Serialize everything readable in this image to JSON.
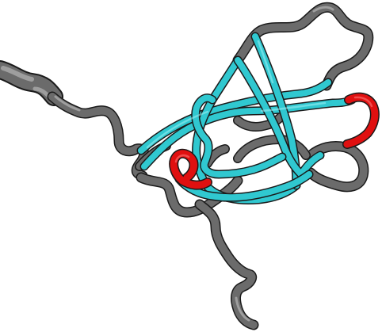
{
  "scene": {
    "background": "#ffffff",
    "colors": {
      "coil": "#6b6b6b",
      "coil_highlight": "#c8c8c8",
      "strand": "#30c8d0",
      "strand_highlight": "#9ff0f4",
      "turn": "#e01010",
      "turn_highlight": "#ff8080",
      "outline": "#1a1a1a"
    },
    "segments": [
      {
        "name": "n-terminal-tail",
        "kind": "coil"
      },
      {
        "name": "linker-coil",
        "kind": "coil"
      },
      {
        "name": "upper-loop",
        "kind": "coil"
      },
      {
        "name": "lower-loop",
        "kind": "coil"
      },
      {
        "name": "c-terminal-tail",
        "kind": "coil"
      },
      {
        "name": "beta-sheet",
        "kind": "strand"
      },
      {
        "name": "red-turn-right",
        "kind": "turn"
      },
      {
        "name": "red-turn-left",
        "kind": "turn"
      }
    ]
  }
}
